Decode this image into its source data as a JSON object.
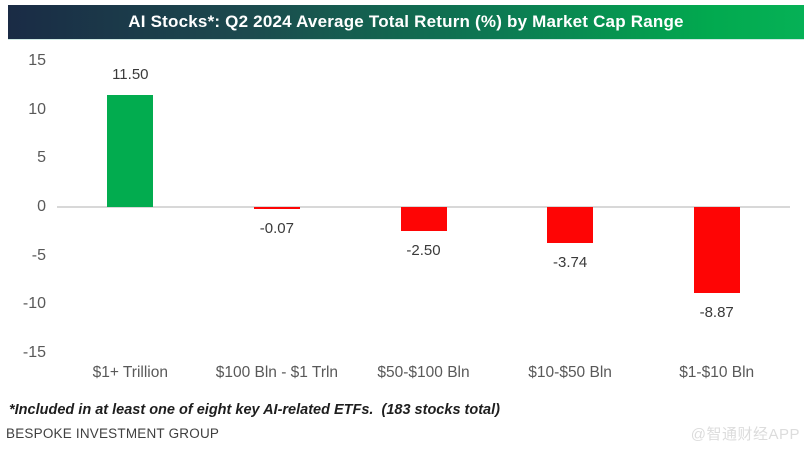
{
  "title_bar": {
    "title": "AI Stocks*: Q2 2024 Average Total Return (%) by Market Cap Range"
  },
  "footnote": "*Included in at least one of eight key AI-related ETFs.  (183 stocks total)",
  "source": "BESPOKE INVESTMENT GROUP",
  "watermark": "@智通财经APP",
  "colors": {
    "positive_bar": "#02AC4F",
    "negative_bar": "#FE0505",
    "title_bar_left": "#1A2B45",
    "title_bar_right": "#02A94F",
    "axis_line": "#D8D8D8",
    "tick_text": "#595959",
    "value_text": "#3A3A3A"
  },
  "chart_data": {
    "type": "bar",
    "title": "AI Stocks*: Q2 2024 Average Total Return (%) by Market Cap Range",
    "categories": [
      "$1+ Trillion",
      "$100 Bln - $1 Trln",
      "$50-$100 Bln",
      "$10-$50 Bln",
      "$1-$10 Bln"
    ],
    "values": [
      11.5,
      -0.07,
      -2.5,
      -3.74,
      -8.87
    ],
    "value_labels": [
      "11.50",
      "-0.07",
      "-2.50",
      "-3.74",
      "-8.87"
    ],
    "xlabel": "",
    "ylabel": "",
    "ylim": [
      -15,
      15
    ],
    "yticks": [
      15,
      10,
      5,
      0,
      -5,
      -10,
      -15
    ],
    "grid": false,
    "legend": false,
    "annotations": [
      "*Included in at least one of eight key AI-related ETFs.  (183 stocks total)",
      "BESPOKE INVESTMENT GROUP"
    ]
  }
}
